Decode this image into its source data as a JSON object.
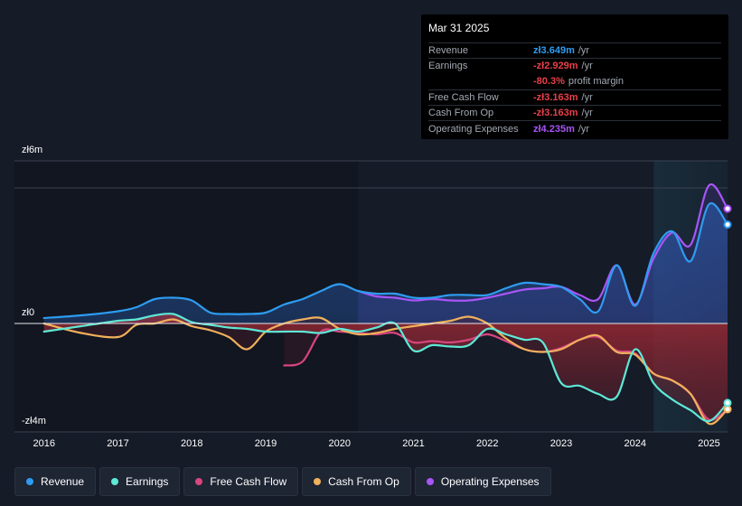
{
  "tooltip": {
    "date": "Mar 31 2025",
    "rows": [
      {
        "label": "Revenue",
        "value": "zł3.649m",
        "suffix": "/yr",
        "color": "#2e9cf0"
      },
      {
        "label": "Earnings",
        "value": "-zł2.929m",
        "suffix": "/yr",
        "color": "#e8404a"
      },
      {
        "label": "",
        "value": "-80.3%",
        "suffix": "profit margin",
        "color": "#e8404a"
      },
      {
        "label": "Free Cash Flow",
        "value": "-zł3.163m",
        "suffix": "/yr",
        "color": "#e8404a"
      },
      {
        "label": "Cash From Op",
        "value": "-zł3.163m",
        "suffix": "/yr",
        "color": "#e8404a"
      },
      {
        "label": "Operating Expenses",
        "value": "zł4.235m",
        "suffix": "/yr",
        "color": "#a855f7"
      }
    ]
  },
  "legend": [
    {
      "label": "Revenue",
      "color": "#2e9cf0"
    },
    {
      "label": "Earnings",
      "color": "#5ee8d6"
    },
    {
      "label": "Free Cash Flow",
      "color": "#d9457f"
    },
    {
      "label": "Cash From Op",
      "color": "#f0b15c"
    },
    {
      "label": "Operating Expenses",
      "color": "#a855f7"
    }
  ],
  "chart_data": {
    "type": "line",
    "title": "",
    "xlabel": "",
    "ylabel": "",
    "ylim": [
      -4,
      6
    ],
    "y_tick_labels": [
      {
        "label": "zł6m",
        "value": 6
      },
      {
        "label": "zł0",
        "value": 0
      },
      {
        "label": "-zł4m",
        "value": -4
      }
    ],
    "x_ticks": [
      "2016",
      "2017",
      "2018",
      "2019",
      "2020",
      "2021",
      "2022",
      "2023",
      "2024",
      "2025"
    ],
    "x_tick_values": [
      2016,
      2017,
      2018,
      2019,
      2020,
      2021,
      2022,
      2023,
      2024,
      2025
    ],
    "xlim": [
      2015.6,
      2025.25
    ],
    "highlight_start": 2024.25,
    "past_data_end": 2020.25,
    "series": [
      {
        "name": "Revenue",
        "color": "#2e9cf0",
        "x": [
          2016.0,
          2016.5,
          2017.0,
          2017.25,
          2017.5,
          2017.75,
          2018.0,
          2018.25,
          2018.5,
          2018.75,
          2019.0,
          2019.25,
          2019.5,
          2019.75,
          2020.0,
          2020.25,
          2020.5,
          2020.75,
          2021.0,
          2021.25,
          2021.5,
          2021.75,
          2022.0,
          2022.25,
          2022.5,
          2022.75,
          2023.0,
          2023.25,
          2023.5,
          2023.75,
          2024.0,
          2024.25,
          2024.5,
          2024.75,
          2025.0,
          2025.25
        ],
        "values": [
          0.2,
          0.3,
          0.45,
          0.6,
          0.9,
          0.95,
          0.85,
          0.4,
          0.35,
          0.35,
          0.4,
          0.7,
          0.9,
          1.2,
          1.45,
          1.2,
          1.1,
          1.1,
          0.95,
          0.95,
          1.05,
          1.05,
          1.05,
          1.3,
          1.5,
          1.45,
          1.35,
          0.9,
          0.45,
          2.15,
          0.65,
          2.6,
          3.4,
          2.3,
          4.4,
          3.649
        ]
      },
      {
        "name": "Earnings",
        "color": "#5ee8d6",
        "x": [
          2016.0,
          2016.5,
          2017.0,
          2017.25,
          2017.5,
          2017.75,
          2018.0,
          2018.25,
          2018.5,
          2018.75,
          2019.0,
          2019.25,
          2019.5,
          2019.75,
          2020.0,
          2020.25,
          2020.5,
          2020.75,
          2021.0,
          2021.25,
          2021.5,
          2021.75,
          2022.0,
          2022.25,
          2022.5,
          2022.75,
          2023.0,
          2023.25,
          2023.5,
          2023.75,
          2024.0,
          2024.25,
          2024.5,
          2024.75,
          2025.0,
          2025.25
        ],
        "values": [
          -0.3,
          -0.1,
          0.1,
          0.15,
          0.3,
          0.35,
          0.05,
          -0.05,
          -0.15,
          -0.2,
          -0.3,
          -0.3,
          -0.3,
          -0.35,
          -0.2,
          -0.3,
          -0.15,
          0.0,
          -1.0,
          -0.8,
          -0.85,
          -0.8,
          -0.2,
          -0.4,
          -0.6,
          -0.7,
          -2.2,
          -2.3,
          -2.6,
          -2.7,
          -0.95,
          -2.2,
          -2.8,
          -3.2,
          -3.6,
          -2.929
        ]
      },
      {
        "name": "Free Cash Flow",
        "color": "#d9457f",
        "x": [
          2019.25,
          2019.5,
          2019.75,
          2020.0,
          2020.25,
          2020.5,
          2020.75,
          2021.0,
          2021.25,
          2021.5,
          2021.75,
          2022.0,
          2022.25,
          2022.5,
          2022.75,
          2023.0,
          2023.25,
          2023.5,
          2023.75,
          2024.0,
          2024.25,
          2024.5,
          2024.75,
          2025.0,
          2025.25
        ],
        "values": [
          -1.55,
          -1.4,
          -0.3,
          -0.3,
          -0.35,
          -0.4,
          -0.35,
          -0.7,
          -0.65,
          -0.7,
          -0.6,
          -0.4,
          -0.65,
          -0.95,
          -1.05,
          -0.9,
          -0.6,
          -0.5,
          -1.0,
          -1.1,
          -1.85,
          -2.1,
          -2.6,
          -3.55,
          -3.163
        ]
      },
      {
        "name": "Cash From Op",
        "color": "#f0b15c",
        "x": [
          2016.0,
          2016.5,
          2017.0,
          2017.25,
          2017.5,
          2017.75,
          2018.0,
          2018.25,
          2018.5,
          2018.75,
          2019.0,
          2019.25,
          2019.5,
          2019.75,
          2020.0,
          2020.25,
          2020.5,
          2020.75,
          2021.0,
          2021.25,
          2021.5,
          2021.75,
          2022.0,
          2022.25,
          2022.5,
          2022.75,
          2023.0,
          2023.25,
          2023.5,
          2023.75,
          2024.0,
          2024.25,
          2024.5,
          2024.75,
          2025.0,
          2025.25
        ],
        "values": [
          0.0,
          -0.35,
          -0.5,
          -0.05,
          0.0,
          0.15,
          -0.1,
          -0.25,
          -0.5,
          -0.95,
          -0.3,
          0.0,
          0.15,
          0.2,
          -0.2,
          -0.4,
          -0.35,
          -0.2,
          -0.1,
          0.0,
          0.1,
          0.25,
          0.0,
          -0.55,
          -0.95,
          -1.05,
          -0.95,
          -0.6,
          -0.45,
          -1.05,
          -1.15,
          -1.85,
          -2.1,
          -2.6,
          -3.7,
          -3.163
        ]
      },
      {
        "name": "Operating Expenses",
        "color": "#a855f7",
        "x": [
          2020.25,
          2020.5,
          2020.75,
          2021.0,
          2021.25,
          2021.5,
          2021.75,
          2022.0,
          2022.25,
          2022.5,
          2022.75,
          2023.0,
          2023.25,
          2023.5,
          2023.75,
          2024.0,
          2024.25,
          2024.5,
          2024.75,
          2025.0,
          2025.25
        ],
        "values": [
          1.2,
          1.0,
          0.95,
          0.85,
          0.9,
          0.85,
          0.85,
          0.95,
          1.1,
          1.25,
          1.3,
          1.35,
          1.05,
          0.9,
          2.15,
          0.7,
          2.4,
          3.35,
          2.9,
          5.1,
          4.235
        ]
      }
    ]
  }
}
